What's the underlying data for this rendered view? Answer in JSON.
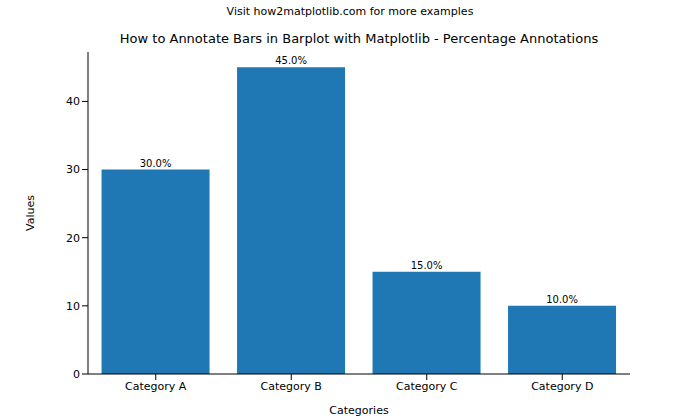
{
  "chart_data": {
    "type": "bar",
    "suptitle": "Visit how2matplotlib.com for more examples",
    "title": "How to Annotate Bars in Barplot with Matplotlib - Percentage Annotations",
    "x_label": "Categories",
    "y_label": "Values",
    "categories": [
      "Category A",
      "Category B",
      "Category C",
      "Category D"
    ],
    "values": [
      30,
      45,
      15,
      10
    ],
    "value_labels": [
      "30.0%",
      "45.0%",
      "15.0%",
      "10.0%"
    ],
    "data_labels": true,
    "color": "#1f77b4",
    "ylim": [
      0,
      47.25
    ],
    "yticks": [
      0,
      10,
      20,
      30,
      40
    ],
    "grid": false
  }
}
